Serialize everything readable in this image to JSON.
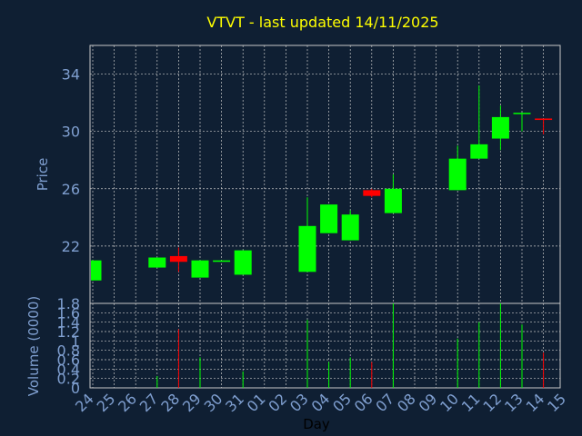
{
  "chart_data": {
    "type": "candlestick",
    "title": "VTVT - last updated 14/11/2025",
    "ylabel": "Price",
    "volume_label": "Volume (0000)",
    "xlabel": "Day",
    "grid": true,
    "ylim": [
      18,
      36
    ],
    "volume_ylim": [
      0,
      1.8
    ],
    "price_ticks": [
      "22",
      "26",
      "30",
      "34"
    ],
    "volume_ticks": [
      "0",
      "0.2",
      "0.4",
      "0.6",
      "0.8",
      "1",
      "1.2",
      "1.4",
      "1.6",
      "1.8"
    ],
    "categories": [
      "24",
      "25",
      "26",
      "27",
      "28",
      "29",
      "30",
      "31",
      "01",
      "02",
      "03",
      "04",
      "05",
      "06",
      "07",
      "08",
      "09",
      "10",
      "11",
      "12",
      "13",
      "14",
      "15"
    ],
    "candles": [
      {
        "x": "24",
        "open": 19.6,
        "high": 21.0,
        "low": 19.6,
        "close": 21.0,
        "volume": null
      },
      {
        "x": "27",
        "open": 20.5,
        "high": 21.2,
        "low": 20.5,
        "close": 21.2,
        "volume": 0.25
      },
      {
        "x": "28",
        "open": 21.3,
        "high": 21.9,
        "low": 20.2,
        "close": 20.9,
        "volume": 1.25
      },
      {
        "x": "29",
        "open": 19.8,
        "high": 21.0,
        "low": 19.8,
        "close": 21.0,
        "volume": 0.65
      },
      {
        "x": "30",
        "open": 20.9,
        "high": 21.0,
        "low": 20.9,
        "close": 21.0,
        "volume": 0.0
      },
      {
        "x": "31",
        "open": 20.0,
        "high": 21.7,
        "low": 20.0,
        "close": 21.7,
        "volume": 0.35
      },
      {
        "x": "03",
        "open": 20.2,
        "high": 25.4,
        "low": 20.2,
        "close": 23.4,
        "volume": 1.45
      },
      {
        "x": "04",
        "open": 22.9,
        "high": 24.9,
        "low": 22.9,
        "close": 24.9,
        "volume": 0.55
      },
      {
        "x": "05",
        "open": 22.4,
        "high": 24.5,
        "low": 22.4,
        "close": 24.2,
        "volume": 0.65
      },
      {
        "x": "06",
        "open": 25.9,
        "high": 26.0,
        "low": 25.4,
        "close": 25.5,
        "volume": 0.55
      },
      {
        "x": "07",
        "open": 24.3,
        "high": 27.0,
        "low": 24.3,
        "close": 26.0,
        "volume": 1.8
      },
      {
        "x": "10",
        "open": 25.9,
        "high": 29.0,
        "low": 25.9,
        "close": 28.1,
        "volume": 1.05
      },
      {
        "x": "11",
        "open": 28.1,
        "high": 33.2,
        "low": 28.1,
        "close": 29.1,
        "volume": 1.4
      },
      {
        "x": "12",
        "open": 29.5,
        "high": 31.8,
        "low": 28.7,
        "close": 31.0,
        "volume": 1.8
      },
      {
        "x": "13",
        "open": 31.3,
        "high": 31.3,
        "low": 30.0,
        "close": 31.3,
        "volume": 1.35
      },
      {
        "x": "14",
        "open": 30.9,
        "high": 30.9,
        "low": 29.8,
        "close": 30.8,
        "volume": 0.75
      }
    ]
  },
  "colors": {
    "background": "#0f1f33",
    "title": "#ffff00",
    "axis_text": "#7f9fd0",
    "grid": "#c8c8c8",
    "up": "#00ff00",
    "down": "#ff0000"
  }
}
